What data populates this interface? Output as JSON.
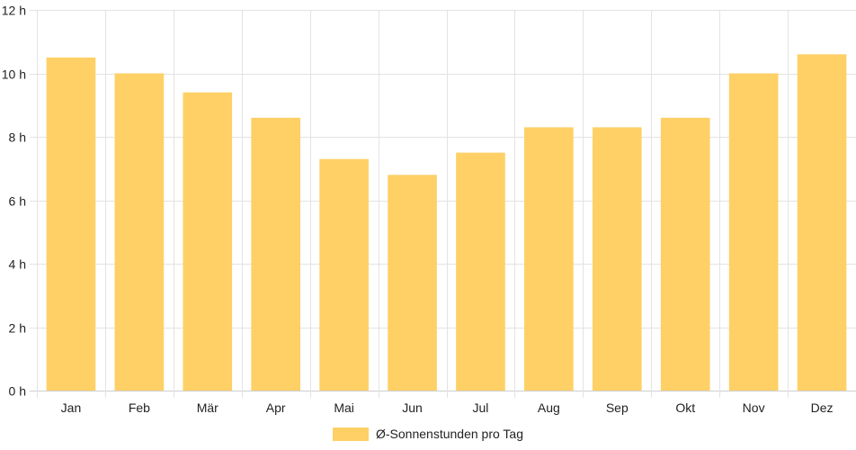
{
  "chart_data": {
    "type": "bar",
    "categories": [
      "Jan",
      "Feb",
      "Mär",
      "Apr",
      "Mai",
      "Jun",
      "Jul",
      "Aug",
      "Sep",
      "Okt",
      "Nov",
      "Dez"
    ],
    "series": [
      {
        "name": "Ø-Sonnenstunden pro Tag",
        "values": [
          10.5,
          10.0,
          9.4,
          8.6,
          7.3,
          6.8,
          7.5,
          8.3,
          8.3,
          8.6,
          10.0,
          10.6
        ],
        "color": "#fed066"
      }
    ],
    "ylim": [
      0,
      12
    ],
    "y_ticks": [
      "0 h",
      "2 h",
      "4 h",
      "6 h",
      "8 h",
      "10 h",
      "12 h"
    ],
    "grid": true,
    "legend_position": "bottom"
  }
}
